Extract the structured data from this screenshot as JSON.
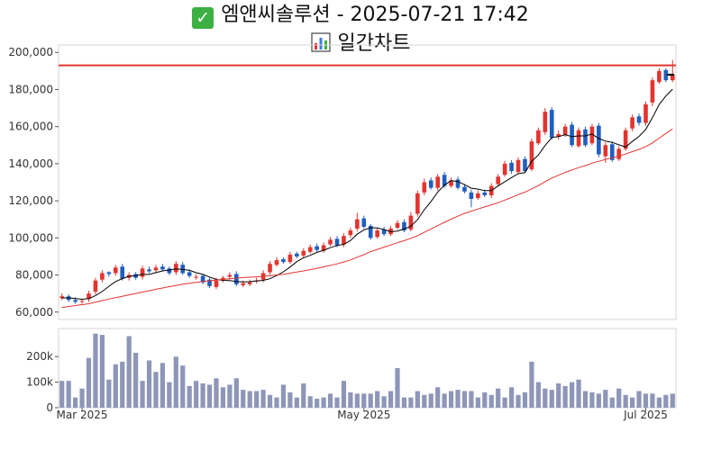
{
  "header": {
    "title": "엠앤씨솔루션 - 2025-07-21 17:42",
    "subtitle": "일간차트",
    "title_icon": "check-mark-icon",
    "subtitle_icon": "bar-chart-icon"
  },
  "colors": {
    "up": "#e3342f",
    "down": "#1f5fbf",
    "ma_short": "#000000",
    "ma_long": "#e3342f",
    "ref_line": "#e3342f",
    "volume": "#8e96b8"
  },
  "chart_data": [
    {
      "type": "candlestick",
      "title": "",
      "ylim": [
        56000,
        204000
      ],
      "yticks": [
        60000,
        80000,
        100000,
        120000,
        140000,
        160000,
        180000,
        200000
      ],
      "ytick_labels": [
        "60,000",
        "80,000",
        "100,000",
        "120,000",
        "140,000",
        "160,000",
        "180,000",
        "200,000"
      ],
      "grid": false,
      "reference_line": 193000,
      "x_labels": [
        {
          "label": "Mar 2025",
          "index": 3
        },
        {
          "label": "May 2025",
          "index": 45
        },
        {
          "label": "Jul 2025",
          "index": 87
        }
      ],
      "closes": [
        68500,
        66500,
        65500,
        66000,
        70000,
        77000,
        81000,
        80500,
        84000,
        78000,
        80000,
        78500,
        83500,
        82000,
        84000,
        83000,
        81000,
        86000,
        81000,
        79500,
        79000,
        76000,
        74000,
        77000,
        78500,
        80000,
        75000,
        75500,
        76000,
        77000,
        81000,
        86000,
        88000,
        87000,
        91000,
        90000,
        93000,
        95000,
        93500,
        96000,
        99000,
        96000,
        101000,
        104000,
        110000,
        106000,
        100000,
        104000,
        102000,
        105000,
        108000,
        104000,
        112000,
        124000,
        130000,
        127000,
        133000,
        128000,
        131000,
        127000,
        125000,
        121000,
        124000,
        123000,
        128000,
        133000,
        140000,
        136000,
        142000,
        136000,
        152000,
        158000,
        168000,
        154000,
        156000,
        160000,
        150000,
        158000,
        150000,
        160000,
        145000,
        150000,
        142000,
        148000,
        158000,
        165000,
        162000,
        172000,
        185000,
        190000,
        185000,
        188000
      ],
      "opens": [
        67500,
        68500,
        66500,
        65500,
        67000,
        71000,
        77500,
        81500,
        81000,
        84500,
        78500,
        80500,
        79000,
        83000,
        82500,
        84500,
        83500,
        81500,
        85500,
        81500,
        78500,
        79500,
        77500,
        73500,
        77500,
        79000,
        80500,
        74500,
        75000,
        76500,
        77500,
        81500,
        85500,
        88500,
        87000,
        91500,
        90500,
        92500,
        95500,
        93000,
        96500,
        99500,
        96500,
        101500,
        105000,
        110500,
        106500,
        100500,
        104500,
        102000,
        105500,
        108500,
        104500,
        113000,
        124500,
        131000,
        127000,
        134000,
        128000,
        131500,
        127500,
        124500,
        121500,
        124500,
        123000,
        129000,
        134000,
        140500,
        135500,
        142500,
        137000,
        151000,
        157000,
        169000,
        154500,
        155500,
        161000,
        149500,
        158500,
        151000,
        160500,
        144000,
        150500,
        142500,
        148000,
        159000,
        165500,
        162000,
        173000,
        184000,
        190500,
        185000
      ],
      "highs": [
        70000,
        69500,
        68000,
        67000,
        71500,
        78500,
        82500,
        82000,
        85500,
        86000,
        81500,
        81500,
        85000,
        84500,
        85500,
        86000,
        84500,
        87500,
        87000,
        83000,
        80500,
        80500,
        78500,
        78500,
        79500,
        81500,
        82000,
        77000,
        77500,
        78500,
        82500,
        87500,
        89500,
        89500,
        92500,
        92500,
        94500,
        96500,
        97000,
        97500,
        100500,
        101000,
        102500,
        105500,
        113500,
        112000,
        107500,
        105500,
        106000,
        106500,
        109500,
        110000,
        114000,
        125500,
        132000,
        132500,
        134500,
        135500,
        132500,
        133000,
        129000,
        126000,
        125500,
        126000,
        129500,
        134500,
        141500,
        142000,
        143500,
        144000,
        153500,
        159500,
        170000,
        170500,
        158000,
        161500,
        162500,
        159500,
        160000,
        161500,
        162000,
        151500,
        152000,
        149500,
        159500,
        166500,
        167000,
        173500,
        186500,
        191500,
        191500,
        196000
      ],
      "lows": [
        66500,
        65500,
        64500,
        64500,
        65500,
        69500,
        76000,
        79000,
        79500,
        77000,
        77000,
        77500,
        77500,
        81000,
        81000,
        82000,
        80000,
        80000,
        80000,
        78500,
        77500,
        75000,
        73000,
        72500,
        76000,
        77500,
        74000,
        73500,
        74000,
        75500,
        76000,
        80000,
        84500,
        86000,
        86000,
        89000,
        89500,
        91500,
        92500,
        92000,
        95500,
        95000,
        95000,
        100000,
        103500,
        105000,
        99000,
        99500,
        101000,
        101000,
        104500,
        103000,
        103500,
        111500,
        123000,
        126000,
        125500,
        127000,
        127000,
        126000,
        124000,
        116500,
        120500,
        122000,
        121500,
        128000,
        133000,
        134500,
        134500,
        135000,
        136000,
        150000,
        155500,
        153000,
        153000,
        154500,
        149000,
        148500,
        149000,
        150000,
        143500,
        140500,
        141000,
        141500,
        147000,
        157500,
        160500,
        160500,
        171000,
        183000,
        184000,
        184000
      ],
      "series": [
        {
          "values": [
            67600,
            67700,
            67300,
            66900,
            67300,
            68900,
            71100,
            73900,
            76500,
            78100,
            79300,
            79700,
            80300,
            80300,
            81300,
            82200,
            82700,
            83300,
            83000,
            82500,
            81300,
            80300,
            78900,
            77600,
            77100,
            77000,
            76500,
            76300,
            76400,
            76800,
            77100,
            78000,
            79700,
            81700,
            84300,
            87200,
            89300,
            90600,
            92200,
            93300,
            94700,
            95900,
            96500,
            98600,
            102000,
            104300,
            105500,
            105400,
            104500,
            103300,
            103700,
            104800,
            106300,
            109800,
            115200,
            119600,
            124700,
            128400,
            130900,
            130400,
            128700,
            126800,
            126300,
            125500,
            125500,
            128000,
            130300,
            132500,
            134600,
            135200,
            141300,
            144700,
            149800,
            154100,
            154600,
            155600,
            154600,
            155000,
            155000,
            156000,
            153600,
            152200,
            151500,
            150200,
            149000,
            152000,
            154700,
            158500,
            164800,
            171900,
            176500,
            180200
          ]
        },
        {
          "values": [
            62500,
            63000,
            63500,
            64000,
            64500,
            65300,
            66200,
            67000,
            67800,
            68500,
            69300,
            70000,
            70800,
            71500,
            72300,
            73000,
            73700,
            74300,
            75000,
            75500,
            76000,
            76500,
            76900,
            77300,
            77600,
            78000,
            78300,
            78600,
            78800,
            79000,
            79300,
            79600,
            80000,
            80400,
            81000,
            81600,
            82200,
            82900,
            83600,
            84400,
            85200,
            86000,
            87000,
            88100,
            89600,
            91000,
            92600,
            93800,
            95000,
            96200,
            97400,
            98500,
            99800,
            101200,
            103000,
            104800,
            106600,
            108400,
            110100,
            111700,
            113200,
            114400,
            115600,
            116700,
            117800,
            119000,
            120400,
            121800,
            123300,
            124700,
            126400,
            128200,
            130300,
            132300,
            133800,
            135300,
            136600,
            137900,
            139000,
            140300,
            141300,
            142300,
            143200,
            144100,
            145200,
            146500,
            147700,
            149200,
            151200,
            153800,
            156300,
            158800
          ]
        }
      ],
      "last_close_marker": 188000
    },
    {
      "type": "bar",
      "title": "",
      "ylim": [
        0,
        310000
      ],
      "yticks": [
        0,
        100000,
        200000
      ],
      "ytick_labels": [
        "0",
        "100k",
        "200k"
      ],
      "values": [
        105000,
        105000,
        40000,
        75000,
        195000,
        290000,
        285000,
        110000,
        170000,
        180000,
        280000,
        215000,
        105000,
        185000,
        140000,
        175000,
        100000,
        200000,
        165000,
        85000,
        105000,
        95000,
        90000,
        115000,
        80000,
        90000,
        115000,
        70000,
        65000,
        65000,
        70000,
        50000,
        40000,
        90000,
        60000,
        40000,
        95000,
        45000,
        35000,
        40000,
        55000,
        40000,
        105000,
        60000,
        55000,
        55000,
        55000,
        65000,
        45000,
        65000,
        155000,
        40000,
        40000,
        65000,
        50000,
        55000,
        80000,
        55000,
        65000,
        70000,
        65000,
        65000,
        40000,
        60000,
        50000,
        75000,
        40000,
        80000,
        50000,
        60000,
        180000,
        100000,
        75000,
        70000,
        95000,
        85000,
        100000,
        110000,
        65000,
        60000,
        55000,
        70000,
        40000,
        75000,
        50000,
        40000,
        65000,
        55000,
        55000,
        40000,
        50000,
        55000
      ]
    }
  ]
}
